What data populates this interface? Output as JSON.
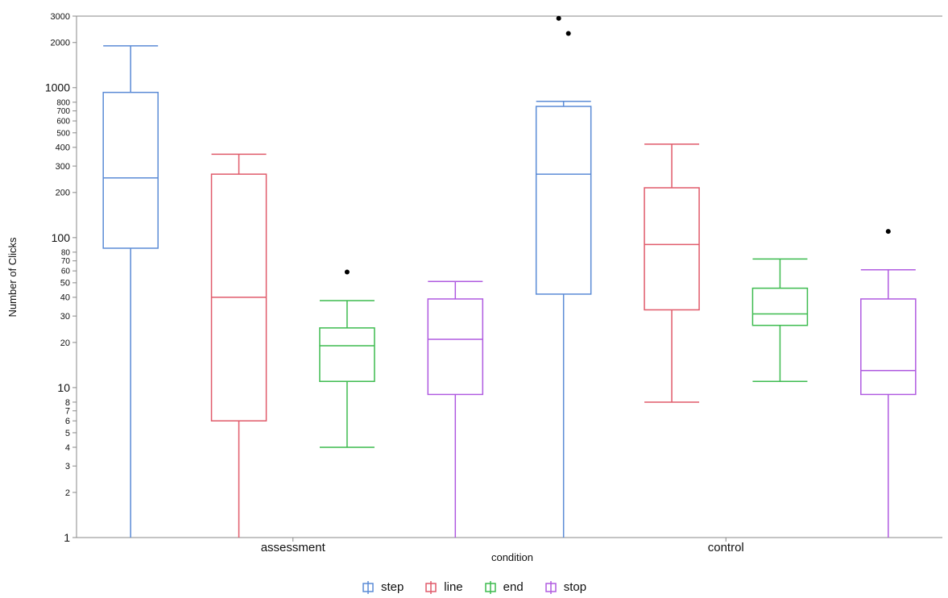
{
  "chart_data": {
    "type": "boxplot",
    "title": "",
    "xlabel": "condition",
    "ylabel": "Number of Clicks",
    "yscale": "log",
    "ylim": [
      1,
      3000
    ],
    "yticks": [
      {
        "value": 1,
        "label": "1"
      },
      {
        "value": 2,
        "label": "2"
      },
      {
        "value": 3,
        "label": "3"
      },
      {
        "value": 4,
        "label": "4"
      },
      {
        "value": 5,
        "label": "5"
      },
      {
        "value": 6,
        "label": "6"
      },
      {
        "value": 7,
        "label": "7"
      },
      {
        "value": 8,
        "label": "8"
      },
      {
        "value": 10,
        "label": "10"
      },
      {
        "value": 20,
        "label": "20"
      },
      {
        "value": 30,
        "label": "30"
      },
      {
        "value": 40,
        "label": "40"
      },
      {
        "value": 50,
        "label": "50"
      },
      {
        "value": 60,
        "label": "60"
      },
      {
        "value": 70,
        "label": "70"
      },
      {
        "value": 80,
        "label": "80"
      },
      {
        "value": 100,
        "label": "100"
      },
      {
        "value": 200,
        "label": "200"
      },
      {
        "value": 300,
        "label": "300"
      },
      {
        "value": 400,
        "label": "400"
      },
      {
        "value": 500,
        "label": "500"
      },
      {
        "value": 600,
        "label": "600"
      },
      {
        "value": 700,
        "label": "700"
      },
      {
        "value": 800,
        "label": "800"
      },
      {
        "value": 1000,
        "label": "1000"
      },
      {
        "value": 2000,
        "label": "2000"
      },
      {
        "value": 3000,
        "label": "3000"
      }
    ],
    "categories": [
      "assessment",
      "control"
    ],
    "legend_position": "bottom",
    "grid": false,
    "series": [
      {
        "name": "step",
        "color": "#5b8bd6",
        "boxes": [
          {
            "category": "assessment",
            "whisker_low": 1,
            "q1": 85,
            "median": 250,
            "q3": 930,
            "whisker_high": 1900,
            "outliers": []
          },
          {
            "category": "control",
            "whisker_low": 1,
            "q1": 42,
            "median": 265,
            "q3": 750,
            "whisker_high": 810,
            "outliers": [
              2900,
              2300
            ]
          }
        ]
      },
      {
        "name": "line",
        "color": "#e05a6a",
        "boxes": [
          {
            "category": "assessment",
            "whisker_low": 1,
            "q1": 6,
            "median": 40,
            "q3": 265,
            "whisker_high": 360,
            "outliers": []
          },
          {
            "category": "control",
            "whisker_low": 8,
            "q1": 33,
            "median": 90,
            "q3": 215,
            "whisker_high": 420,
            "outliers": []
          }
        ]
      },
      {
        "name": "end",
        "color": "#3dbb4f",
        "boxes": [
          {
            "category": "assessment",
            "whisker_low": 4,
            "q1": 11,
            "median": 19,
            "q3": 25,
            "whisker_high": 38,
            "outliers": [
              59
            ]
          },
          {
            "category": "control",
            "whisker_low": 11,
            "q1": 26,
            "median": 31,
            "q3": 46,
            "whisker_high": 72,
            "outliers": []
          }
        ]
      },
      {
        "name": "stop",
        "color": "#b05be0",
        "boxes": [
          {
            "category": "assessment",
            "whisker_low": 1,
            "q1": 9,
            "median": 21,
            "q3": 39,
            "whisker_high": 51,
            "outliers": []
          },
          {
            "category": "control",
            "whisker_low": 1,
            "q1": 9,
            "median": 13,
            "q3": 39,
            "whisker_high": 61,
            "outliers": [
              110
            ]
          }
        ]
      }
    ]
  }
}
